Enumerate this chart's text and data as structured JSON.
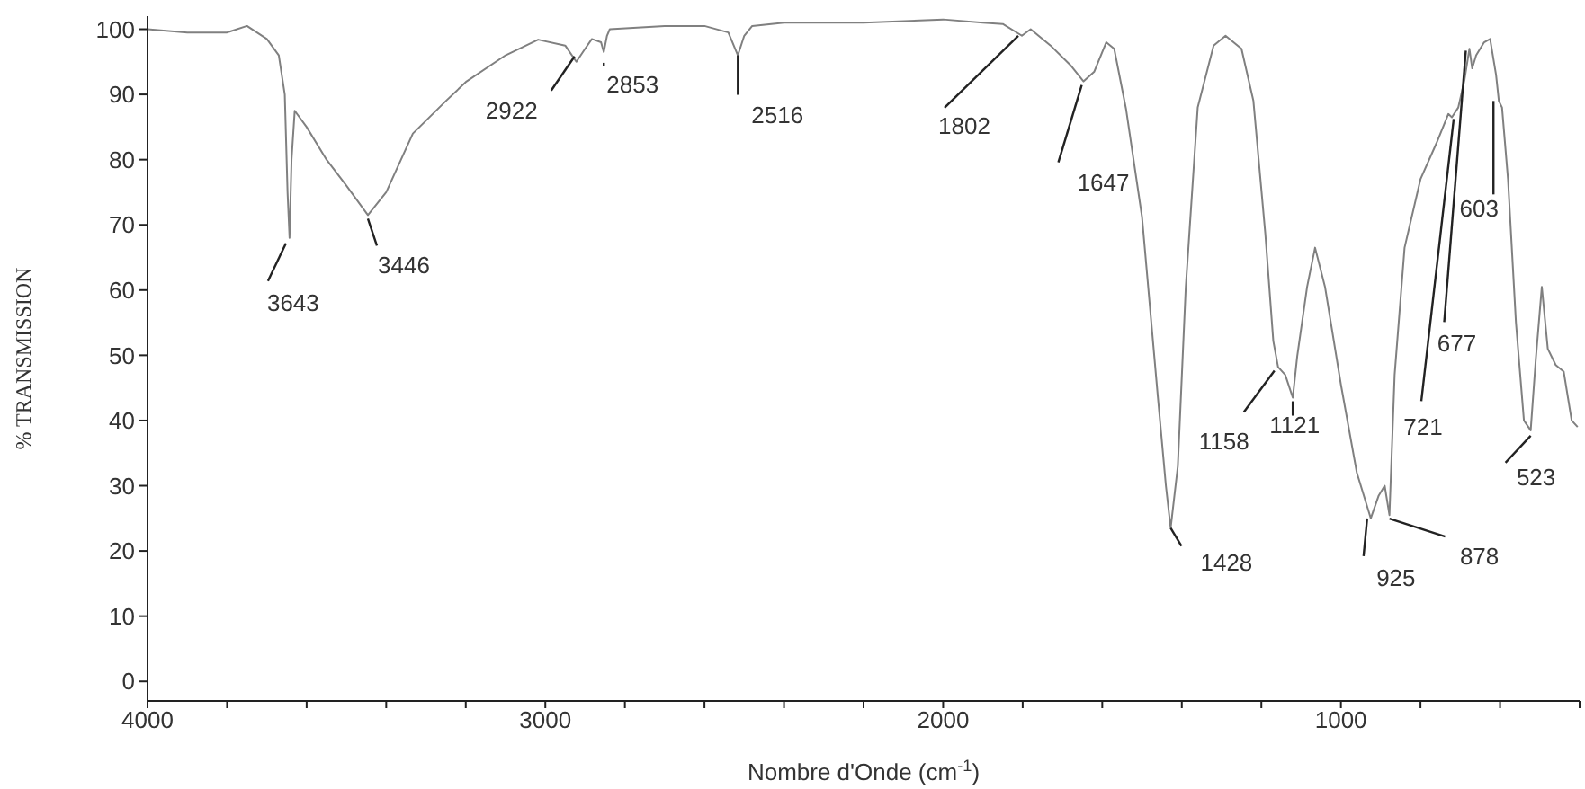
{
  "chart_data": {
    "type": "line",
    "xlabel": "Nombre d'Onde (cm$^{-1}$)",
    "ylabel": "% TRANSMISSION",
    "xlim": [
      4000,
      400
    ],
    "ylim": [
      -3,
      102
    ],
    "xticks": [
      4000,
      {
        "value": 3800,
        "label": null
      },
      {
        "value": 3600,
        "label": null
      },
      {
        "value": 3400,
        "label": null
      },
      {
        "value": 3200,
        "label": null
      },
      3000,
      {
        "value": 2800,
        "label": null
      },
      {
        "value": 2600,
        "label": null
      },
      {
        "value": 2400,
        "label": null
      },
      {
        "value": 2200,
        "label": null
      },
      2000,
      {
        "value": 1800,
        "label": null
      },
      {
        "value": 1600,
        "label": null
      },
      {
        "value": 1400,
        "label": null
      },
      {
        "value": 1200,
        "label": null
      },
      1000,
      {
        "value": 800,
        "label": null
      },
      {
        "value": 600,
        "label": null
      },
      {
        "value": 400,
        "label": null
      }
    ],
    "yticks": [
      0,
      10,
      20,
      30,
      40,
      50,
      60,
      70,
      80,
      90,
      100
    ],
    "grid": false,
    "legend": false,
    "marker": "none",
    "series": [
      {
        "color": "#808080",
        "x": [
          4000,
          3900,
          3800,
          3750,
          3700,
          3670,
          3655,
          3648,
          3643,
          3638,
          3630,
          3600,
          3550,
          3500,
          3446,
          3400,
          3333,
          3250,
          3198,
          3100,
          3018,
          2950,
          2922,
          2900,
          2883,
          2860,
          2853,
          2845,
          2838,
          2700,
          2600,
          2540,
          2516,
          2500,
          2480,
          2400,
          2200,
          2000,
          1900,
          1850,
          1802,
          1780,
          1730,
          1680,
          1647,
          1620,
          1590,
          1570,
          1540,
          1500,
          1460,
          1440,
          1428,
          1410,
          1390,
          1360,
          1320,
          1290,
          1250,
          1220,
          1190,
          1170,
          1158,
          1140,
          1121,
          1110,
          1085,
          1065,
          1040,
          1000,
          960,
          925,
          905,
          890,
          878,
          865,
          840,
          800,
          760,
          730,
          721,
          705,
          690,
          677,
          670,
          660,
          640,
          625,
          610,
          603,
          595,
          580,
          560,
          540,
          523,
          510,
          495,
          480,
          460,
          440,
          420,
          405
        ],
        "values": [
          100,
          99.5,
          99.5,
          100.5,
          98.5,
          96,
          90,
          75,
          68,
          80,
          87.5,
          85,
          80,
          76,
          71.5,
          75,
          84,
          89,
          92,
          96,
          98.4,
          97.5,
          95,
          97,
          98.5,
          98,
          96.5,
          99,
          100,
          100.5,
          100.5,
          99.5,
          96,
          99,
          100.5,
          101,
          101,
          101.5,
          101,
          100.8,
          99,
          100,
          97.5,
          94.5,
          92,
          93.5,
          98,
          97,
          87.7,
          71.2,
          43.5,
          30,
          23.5,
          33,
          60.5,
          88,
          97.5,
          99,
          97,
          89,
          68.6,
          52.2,
          48.2,
          47,
          43.5,
          49.8,
          60.5,
          66.5,
          60.5,
          45.5,
          32,
          25,
          28.5,
          30,
          25.5,
          47,
          66.5,
          77,
          82.5,
          87,
          86.5,
          88,
          92,
          97,
          94,
          96,
          98,
          98.5,
          93,
          89,
          88,
          77,
          55,
          40,
          38.5,
          49.5,
          60.5,
          51,
          48.5,
          47.5,
          40,
          39
        ]
      }
    ],
    "annotations": [
      {
        "text": "3643",
        "x": 3643,
        "y": 68
      },
      {
        "text": "3446",
        "x": 3446,
        "y": 71.5
      },
      {
        "text": "2922",
        "x": 2922,
        "y": 95
      },
      {
        "text": "2853",
        "x": 2853,
        "y": 96.5
      },
      {
        "text": "2516",
        "x": 2516,
        "y": 96
      },
      {
        "text": "1802",
        "x": 1802,
        "y": 99
      },
      {
        "text": "1647",
        "x": 1647,
        "y": 92
      },
      {
        "text": "1428",
        "x": 1428,
        "y": 23.5
      },
      {
        "text": "1158",
        "x": 1158,
        "y": 48.2
      },
      {
        "text": "1121",
        "x": 1121,
        "y": 43.5
      },
      {
        "text": "925",
        "x": 925,
        "y": 25
      },
      {
        "text": "878",
        "x": 878,
        "y": 25.5
      },
      {
        "text": "721",
        "x": 721,
        "y": 86.5
      },
      {
        "text": "677",
        "x": 677,
        "y": 97
      },
      {
        "text": "603",
        "x": 603,
        "y": 89
      },
      {
        "text": "523",
        "x": 523,
        "y": 38.5
      }
    ]
  }
}
